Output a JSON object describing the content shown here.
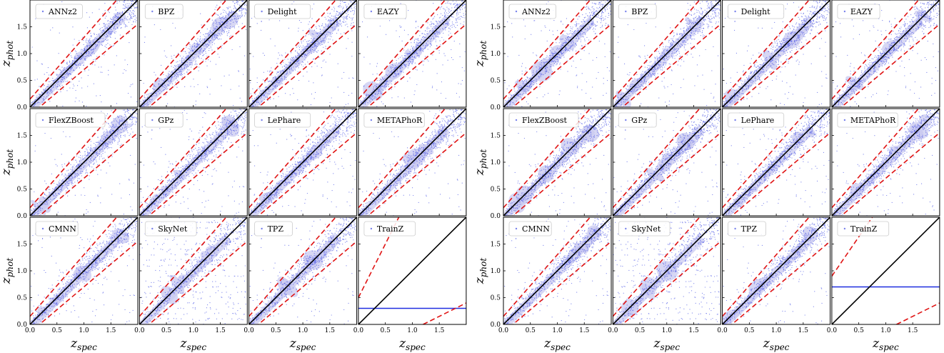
{
  "figure": {
    "x_axis_label": "z_spec",
    "y_axis_label": "z_phot",
    "x_ticks": [
      "0.0",
      "0.5",
      "1.0",
      "1.5"
    ],
    "y_ticks": [
      "0.0",
      "0.5",
      "1.0",
      "1.5"
    ],
    "x_tick_values": [
      0.0,
      0.5,
      1.0,
      1.5
    ],
    "y_tick_values": [
      0.0,
      0.5,
      1.0,
      1.5
    ]
  },
  "colors": {
    "points": "#1f2ee0",
    "density": "#c9c9f0",
    "identity_line": "#000000",
    "outlier_bounds": "#e01414",
    "traintz_line": "#1f2ee0"
  },
  "chart_data": [
    {
      "type": "scatter",
      "panel_group": "left",
      "xlabel": "z_spec",
      "ylabel": "z_phot",
      "xlim": [
        0,
        2
      ],
      "ylim": [
        0,
        2
      ],
      "panels": [
        {
          "name": "ANNz2"
        },
        {
          "name": "BPZ"
        },
        {
          "name": "Delight"
        },
        {
          "name": "EAZY"
        },
        {
          "name": "FlexZBoost"
        },
        {
          "name": "GPz"
        },
        {
          "name": "LePhare"
        },
        {
          "name": "METAPhoR"
        },
        {
          "name": "CMNN"
        },
        {
          "name": "SkyNet"
        },
        {
          "name": "TPZ"
        },
        {
          "name": "TrainZ",
          "constant_prediction": 0.3
        }
      ]
    },
    {
      "type": "scatter",
      "panel_group": "right",
      "xlabel": "z_spec",
      "ylabel": "z_phot",
      "xlim": [
        0,
        2
      ],
      "ylim": [
        0,
        2
      ],
      "panels": [
        {
          "name": "ANNz2"
        },
        {
          "name": "BPZ"
        },
        {
          "name": "Delight"
        },
        {
          "name": "EAZY"
        },
        {
          "name": "FlexZBoost"
        },
        {
          "name": "GPz"
        },
        {
          "name": "LePhare"
        },
        {
          "name": "METAPhoR"
        },
        {
          "name": "CMNN"
        },
        {
          "name": "SkyNet"
        },
        {
          "name": "TPZ"
        },
        {
          "name": "TrainZ",
          "constant_prediction": 0.7
        }
      ]
    }
  ]
}
